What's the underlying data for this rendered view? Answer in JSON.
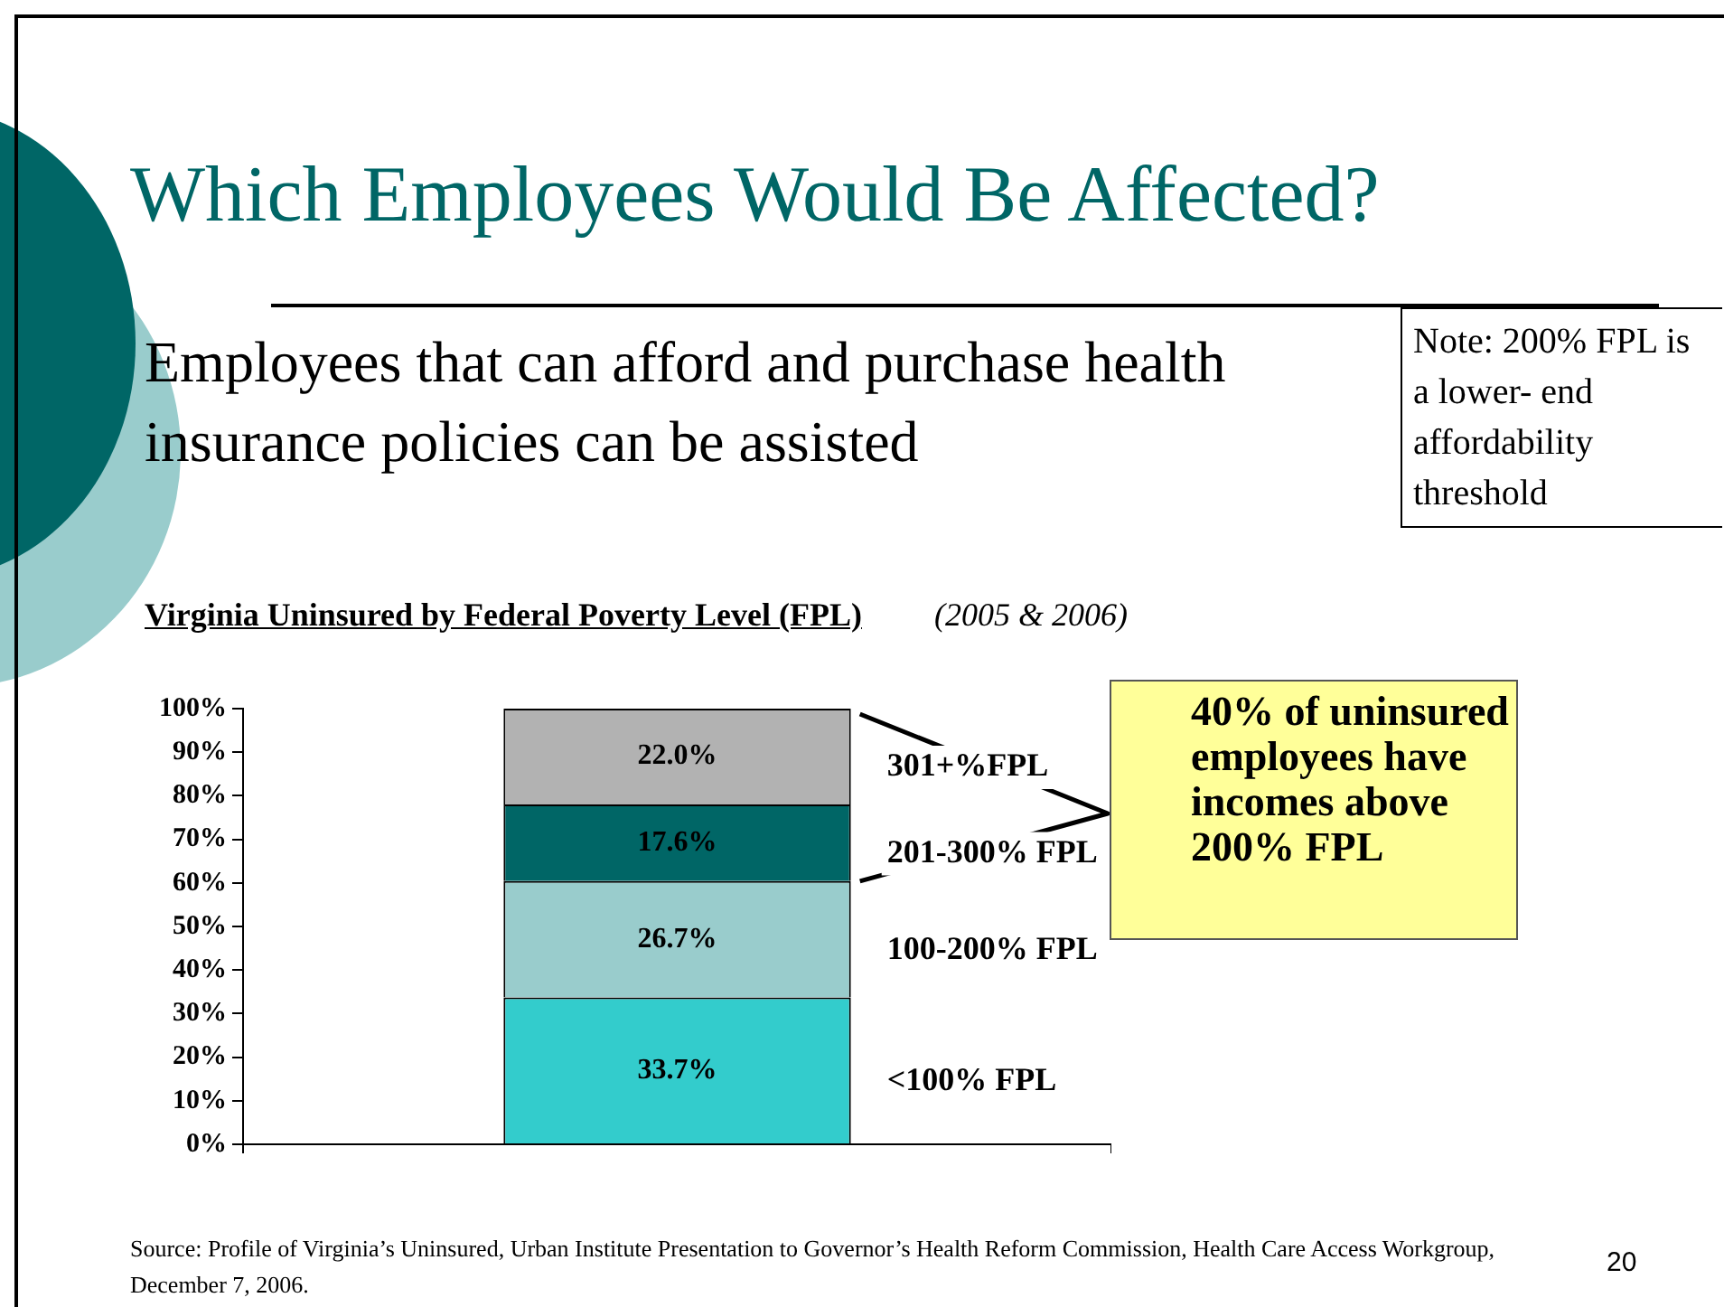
{
  "chart_data": {
    "type": "bar",
    "stacked": true,
    "title": "Virginia Uninsured by Federal Poverty Level (FPL)",
    "subtitle": "(2005 & 2006)",
    "categories": [
      null
    ],
    "series": [
      {
        "name": "<100% FPL",
        "color": "#33cccc",
        "values": [
          33.7
        ],
        "value_labels": [
          "33.7%"
        ]
      },
      {
        "name": "100-200% FPL",
        "color": "#99cccc",
        "values": [
          26.7
        ],
        "value_labels": [
          "26.7%"
        ]
      },
      {
        "name": "201-300% FPL",
        "color": "#006666",
        "values": [
          17.6
        ],
        "value_labels": [
          "17.6%"
        ]
      },
      {
        "name": "301+%FPL",
        "color": "#b2b2b2",
        "values": [
          22.0
        ],
        "value_labels": [
          "22.0%"
        ]
      }
    ],
    "ylim": [
      0,
      100
    ],
    "yticks": [
      {
        "value": 0,
        "label": "0%"
      },
      {
        "value": 10,
        "label": "10%"
      },
      {
        "value": 20,
        "label": "20%"
      },
      {
        "value": 30,
        "label": "30%"
      },
      {
        "value": 40,
        "label": "40%"
      },
      {
        "value": 50,
        "label": "50%"
      },
      {
        "value": 60,
        "label": "60%"
      },
      {
        "value": 70,
        "label": "70%"
      },
      {
        "value": 80,
        "label": "80%"
      },
      {
        "value": 90,
        "label": "90%"
      },
      {
        "value": 100,
        "label": "100%"
      }
    ],
    "grid": false,
    "legend": false,
    "tick_labels": "y",
    "annotations": [
      "Which Employees Would Be Affected?",
      "Employees that can afford and purchase health insurance policies can be assisted",
      "Note: 200% FPL is a lower- end affordability threshold",
      "40% of uninsured employees have incomes above 200% FPL",
      "Source: Profile of Virginia’s Uninsured, Urban Institute Presentation to Governor’s Health Reform Commission, Health Care Access Workgroup, December 7, 2006.",
      "20"
    ]
  }
}
